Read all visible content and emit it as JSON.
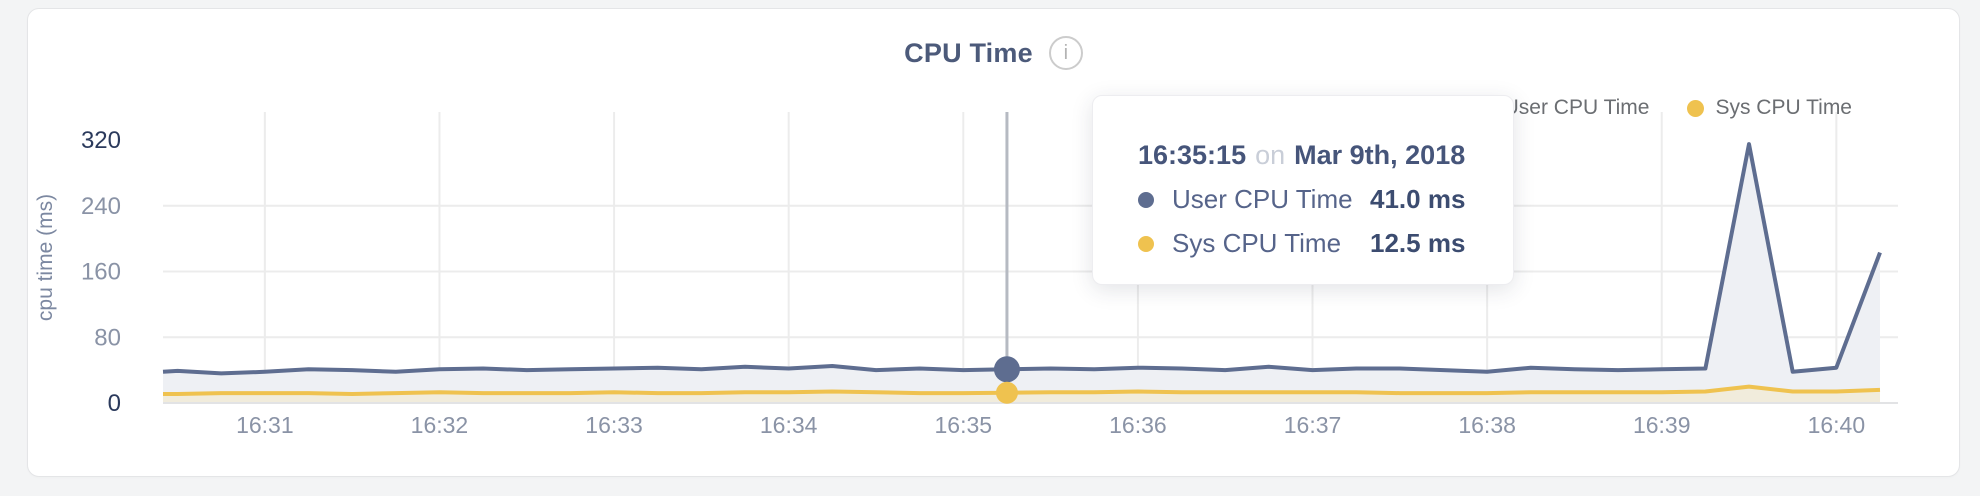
{
  "header": {
    "title": "CPU Time",
    "info_icon_glyph": "i"
  },
  "legend": {
    "items": [
      {
        "label": "User CPU Time",
        "color": "#5e6d90"
      },
      {
        "label": "Sys CPU Time",
        "color": "#efc24f"
      }
    ]
  },
  "tooltip": {
    "time": "16:35:15",
    "conjunction": "on",
    "date": "Mar 9th, 2018",
    "rows": [
      {
        "label": "User CPU Time",
        "value": "41.0 ms",
        "color": "#5e6d90"
      },
      {
        "label": "Sys CPU Time",
        "value": "12.5 ms",
        "color": "#efc24f"
      }
    ]
  },
  "chart_data": {
    "type": "area",
    "title": "CPU Time",
    "xlabel": "",
    "ylabel": "cpu time (ms)",
    "ylim": [
      0,
      320
    ],
    "yticks": [
      0,
      80,
      160,
      240,
      320
    ],
    "xticks": [
      "16:31",
      "16:32",
      "16:33",
      "16:34",
      "16:35",
      "16:36",
      "16:37",
      "16:38",
      "16:39",
      "16:40"
    ],
    "grid": true,
    "legend_position": "top-right",
    "x": [
      "16:30:25",
      "16:30:30",
      "16:30:45",
      "16:31:00",
      "16:31:15",
      "16:31:30",
      "16:31:45",
      "16:32:00",
      "16:32:15",
      "16:32:30",
      "16:32:45",
      "16:33:00",
      "16:33:15",
      "16:33:30",
      "16:33:45",
      "16:34:00",
      "16:34:15",
      "16:34:30",
      "16:34:45",
      "16:35:00",
      "16:35:15",
      "16:35:30",
      "16:35:45",
      "16:36:00",
      "16:36:15",
      "16:36:30",
      "16:36:45",
      "16:37:00",
      "16:37:15",
      "16:37:30",
      "16:37:45",
      "16:38:00",
      "16:38:15",
      "16:38:30",
      "16:38:45",
      "16:39:00",
      "16:39:15",
      "16:39:30",
      "16:39:45",
      "16:40:00",
      "16:40:15"
    ],
    "series": [
      {
        "name": "User CPU Time",
        "color": "#5e6d90",
        "fill": "#eef0f4",
        "values": [
          38,
          39,
          36,
          38,
          41,
          40,
          38,
          41,
          42,
          40,
          41,
          42,
          43,
          41,
          44,
          42,
          45,
          40,
          42,
          40,
          41,
          42,
          41,
          43,
          42,
          40,
          44,
          40,
          42,
          42,
          40,
          38,
          43,
          41,
          40,
          41,
          42,
          315,
          38,
          43,
          183
        ]
      },
      {
        "name": "Sys CPU Time",
        "color": "#efc24f",
        "fill": "#f1ecdc",
        "values": [
          11,
          11,
          12,
          12,
          12,
          11,
          12,
          13,
          12,
          12,
          12,
          13,
          12,
          12,
          13,
          13,
          14,
          13,
          12,
          12,
          12.5,
          13,
          13,
          14,
          13,
          13,
          13,
          13,
          13,
          12,
          12,
          12,
          13,
          13,
          13,
          13,
          14,
          20,
          14,
          14,
          16
        ]
      }
    ],
    "hover": {
      "time": "16:35:15",
      "values": {
        "User CPU Time": 41.0,
        "Sys CPU Time": 12.5
      }
    },
    "colors": {
      "grid": "#ececec",
      "axis_line": "#e2e3e5",
      "tick_label": "#8a93a6",
      "tick_label_emphasis": "#2b3a5c",
      "axis_title": "#7c88a1",
      "hover_line": "#b6bac2"
    }
  }
}
